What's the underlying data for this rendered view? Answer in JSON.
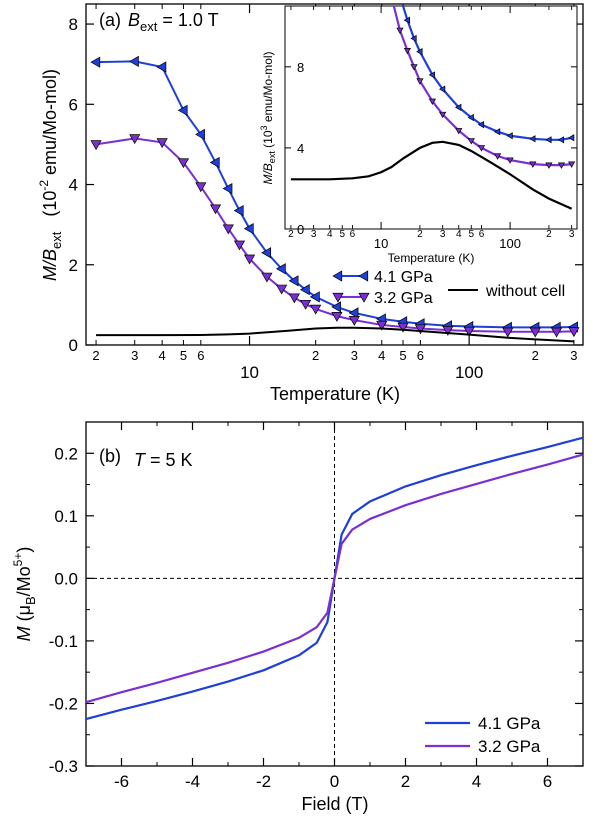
{
  "chart_data": [
    {
      "type": "line",
      "panel_label": "(a)",
      "annotation": {
        "symbol": "B",
        "subscript": "ext",
        "value": " = 1.0 T"
      },
      "xlabel": "Temperature (K)",
      "ylabel": {
        "main": "M/B",
        "sub": "ext",
        "units_prefix": "(10",
        "units_exp": "-2",
        "units_suffix": " emu/Mo-mol)"
      },
      "x_scale": "log",
      "xlim": [
        1.8,
        330
      ],
      "ylim": [
        0,
        8.5
      ],
      "y_ticks": [
        0,
        2,
        4,
        6,
        8
      ],
      "x_major_ticks": [
        {
          "v": 10,
          "label": "10"
        },
        {
          "v": 100,
          "label": "100"
        }
      ],
      "x_minor_ticks": [
        {
          "v": 2,
          "label": "2"
        },
        {
          "v": 3,
          "label": "3"
        },
        {
          "v": 4,
          "label": "4"
        },
        {
          "v": 5,
          "label": "5"
        },
        {
          "v": 6,
          "label": "6"
        },
        {
          "v": 20,
          "label": "2"
        },
        {
          "v": 30,
          "label": "3"
        },
        {
          "v": 40,
          "label": "4"
        },
        {
          "v": 50,
          "label": "5"
        },
        {
          "v": 60,
          "label": "6"
        },
        {
          "v": 200,
          "label": "2"
        },
        {
          "v": 300,
          "label": "3"
        }
      ],
      "legend": [
        {
          "name": "4.1 GPa",
          "color": "#1f3fd6",
          "marker": "triangle-left"
        },
        {
          "name": "3.2 GPa",
          "color": "#7a2fd0",
          "marker": "triangle-down"
        },
        {
          "name": "without cell",
          "color": "#000000",
          "marker": "none"
        }
      ],
      "series": [
        {
          "name": "4.1 GPa",
          "color": "#1f3fd6",
          "marker": "triangle-left",
          "x": [
            2,
            3,
            4,
            5,
            6,
            7,
            8,
            9,
            10,
            12,
            14,
            16,
            18,
            20,
            25,
            30,
            40,
            50,
            60,
            80,
            100,
            150,
            200,
            250,
            300
          ],
          "y": [
            7.05,
            7.07,
            6.93,
            5.85,
            5.25,
            4.55,
            3.9,
            3.35,
            2.9,
            2.3,
            1.9,
            1.6,
            1.38,
            1.2,
            0.95,
            0.8,
            0.65,
            0.58,
            0.53,
            0.48,
            0.46,
            0.44,
            0.44,
            0.44,
            0.45
          ]
        },
        {
          "name": "3.2 GPa",
          "color": "#7a2fd0",
          "marker": "triangle-down",
          "x": [
            2,
            3,
            4,
            5,
            6,
            7,
            8,
            9,
            10,
            12,
            14,
            16,
            18,
            20,
            25,
            30,
            40,
            50,
            60,
            80,
            100,
            150,
            200,
            250,
            300
          ],
          "y": [
            5.0,
            5.15,
            5.05,
            4.55,
            3.95,
            3.4,
            2.9,
            2.5,
            2.15,
            1.7,
            1.4,
            1.18,
            1.02,
            0.9,
            0.72,
            0.62,
            0.5,
            0.45,
            0.41,
            0.37,
            0.35,
            0.33,
            0.33,
            0.33,
            0.34
          ]
        },
        {
          "name": "without cell",
          "color": "#000000",
          "marker": "none",
          "x": [
            2,
            4,
            6,
            8,
            10,
            15,
            20,
            25,
            30,
            40,
            50,
            70,
            100,
            150,
            200,
            300
          ],
          "y": [
            0.245,
            0.245,
            0.25,
            0.265,
            0.285,
            0.355,
            0.41,
            0.43,
            0.43,
            0.41,
            0.38,
            0.32,
            0.26,
            0.18,
            0.14,
            0.09
          ]
        }
      ],
      "inset": {
        "xlabel": "Temperature (K)",
        "ylabel": {
          "main": "M/B",
          "sub": "ext",
          "units_prefix": "(10",
          "units_exp": "3",
          "units_suffix": " emu/Mo-mol)"
        },
        "x_scale": "log",
        "xlim": [
          1.8,
          330
        ],
        "ylim": [
          0,
          11
        ],
        "y_ticks": [
          0,
          4,
          8
        ],
        "x_major_ticks": [
          {
            "v": 10,
            "label": "10"
          },
          {
            "v": 100,
            "label": "100"
          }
        ],
        "x_minor_ticks": [
          {
            "v": 2,
            "label": "2"
          },
          {
            "v": 3,
            "label": "3"
          },
          {
            "v": 4,
            "label": "4"
          },
          {
            "v": 5,
            "label": "5"
          },
          {
            "v": 6,
            "label": "6"
          },
          {
            "v": 20,
            "label": "2"
          },
          {
            "v": 30,
            "label": "3"
          },
          {
            "v": 40,
            "label": "4"
          },
          {
            "v": 50,
            "label": "5"
          },
          {
            "v": 60,
            "label": "6"
          },
          {
            "v": 200,
            "label": "2"
          },
          {
            "v": 300,
            "label": "3"
          }
        ],
        "series": [
          {
            "name": "4.1 GPa",
            "color": "#1f3fd6",
            "marker": "triangle-left",
            "x": [
              14,
              16,
              18,
              20,
              25,
              30,
              40,
              50,
              60,
              80,
              100,
              150,
              200,
              250,
              300
            ],
            "y": [
              11.5,
              10.3,
              9.4,
              8.75,
              7.6,
              6.9,
              6.0,
              5.5,
              5.15,
              4.8,
              4.6,
              4.45,
              4.4,
              4.4,
              4.5
            ]
          },
          {
            "name": "3.2 GPa",
            "color": "#7a2fd0",
            "marker": "triangle-down",
            "x": [
              12,
              14,
              16,
              18,
              20,
              25,
              30,
              40,
              50,
              60,
              80,
              100,
              150,
              200,
              250,
              300
            ],
            "y": [
              11.5,
              9.8,
              8.8,
              8.0,
              7.3,
              6.3,
              5.65,
              4.85,
              4.35,
              4.0,
              3.6,
              3.4,
              3.2,
              3.15,
              3.15,
              3.2
            ]
          },
          {
            "name": "without cell",
            "color": "#000000",
            "marker": "none",
            "x": [
              2,
              4,
              6,
              8,
              10,
              12,
              15,
              20,
              25,
              30,
              40,
              50,
              70,
              100,
              150,
              200,
              300
            ],
            "y": [
              2.45,
              2.45,
              2.5,
              2.6,
              2.8,
              3.05,
              3.5,
              4.0,
              4.25,
              4.3,
              4.15,
              3.85,
              3.3,
              2.7,
              1.95,
              1.5,
              1.0
            ]
          }
        ]
      }
    },
    {
      "type": "line",
      "panel_label": "(b)",
      "annotation": {
        "symbol": "T",
        "value": " = 5 K"
      },
      "xlabel": "Field (T)",
      "ylabel": {
        "main": "M",
        "units_prefix": " (μ",
        "units_sub": "B",
        "units_mid": "/Mo",
        "units_exp": "5+",
        "units_suffix": ")"
      },
      "xlim": [
        -7,
        7
      ],
      "ylim": [
        -0.3,
        0.25
      ],
      "x_ticks": [
        -6,
        -4,
        -2,
        0,
        2,
        4,
        6
      ],
      "y_ticks": [
        -0.3,
        -0.2,
        -0.1,
        0.0,
        0.1,
        0.2
      ],
      "y_tick_labels": [
        "-0.3",
        "-0.2",
        "-0.1",
        "0.0",
        "0.1",
        "0.2"
      ],
      "reference_lines": {
        "x": 0,
        "y": 0,
        "style": "dashed"
      },
      "legend": [
        {
          "name": "4.1 GPa",
          "color": "#1f3fd6"
        },
        {
          "name": "3.2 GPa",
          "color": "#7a2fd0"
        }
      ],
      "series": [
        {
          "name": "4.1 GPa",
          "color": "#1f3fd6",
          "x": [
            -7,
            -6,
            -5,
            -4,
            -3,
            -2,
            -1,
            -0.5,
            -0.2,
            0,
            0.2,
            0.5,
            1,
            2,
            3,
            4,
            5,
            6,
            7
          ],
          "y": [
            -0.225,
            -0.21,
            -0.196,
            -0.181,
            -0.165,
            -0.147,
            -0.123,
            -0.103,
            -0.07,
            0,
            0.07,
            0.103,
            0.123,
            0.147,
            0.165,
            0.181,
            0.196,
            0.21,
            0.225
          ]
        },
        {
          "name": "3.2 GPa",
          "color": "#7a2fd0",
          "x": [
            -7,
            -6,
            -5,
            -4,
            -3,
            -2,
            -1,
            -0.5,
            -0.2,
            0,
            0.2,
            0.5,
            1,
            2,
            3,
            4,
            5,
            6,
            7
          ],
          "y": [
            -0.198,
            -0.182,
            -0.167,
            -0.151,
            -0.135,
            -0.117,
            -0.095,
            -0.078,
            -0.055,
            0,
            0.055,
            0.078,
            0.095,
            0.117,
            0.135,
            0.151,
            0.167,
            0.182,
            0.198
          ]
        }
      ]
    }
  ]
}
